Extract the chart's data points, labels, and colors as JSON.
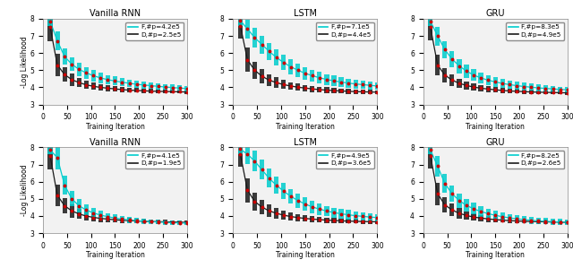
{
  "titles_row1": [
    "Vanilla RNN",
    "LSTM",
    "GRU"
  ],
  "titles_row2": [
    "Vanilla RNN",
    "LSTM",
    "GRU"
  ],
  "legends": [
    [
      "F,#p=4.2e5",
      "D,#p=2.5e5"
    ],
    [
      "F,#p=7.1e5",
      "D,#p=4.4e5"
    ],
    [
      "F,#p=8.3e5",
      "D,#p=4.9e5"
    ],
    [
      "F,#p=4.1e5",
      "D,#p=1.9e5"
    ],
    [
      "F,#p=4.9e5",
      "D,#p=3.6e5"
    ],
    [
      "F,#p=8.2e5",
      "D,#p=2.6e5"
    ]
  ],
  "xlabel": "Training Iteration",
  "ylabel": "-Log Likelihood",
  "xlim": [
    0,
    300
  ],
  "ylim": [
    3,
    8
  ],
  "xticks": [
    0,
    50,
    100,
    150,
    200,
    250,
    300
  ],
  "yticks": [
    3,
    4,
    5,
    6,
    7,
    8
  ],
  "cyan_color": "#00CDCD",
  "black_color": "#1a1a1a",
  "red_dot_color": "#CC0000",
  "background_color": "#f2f2f2",
  "x_points": [
    15,
    30,
    45,
    60,
    75,
    90,
    105,
    120,
    135,
    150,
    165,
    180,
    195,
    210,
    225,
    240,
    255,
    270,
    285,
    300
  ],
  "curves": {
    "r0c0_F_mean": [
      7.85,
      6.7,
      5.8,
      5.35,
      5.05,
      4.85,
      4.68,
      4.55,
      4.45,
      4.37,
      4.3,
      4.24,
      4.18,
      4.14,
      4.1,
      4.06,
      4.02,
      3.99,
      3.96,
      3.93
    ],
    "r0c0_F_err": [
      0.25,
      0.55,
      0.45,
      0.4,
      0.38,
      0.35,
      0.32,
      0.3,
      0.28,
      0.26,
      0.24,
      0.22,
      0.21,
      0.2,
      0.19,
      0.18,
      0.17,
      0.17,
      0.16,
      0.15
    ],
    "r0c0_D_mean": [
      7.5,
      5.3,
      4.75,
      4.45,
      4.28,
      4.15,
      4.06,
      4.0,
      3.95,
      3.91,
      3.87,
      3.84,
      3.82,
      3.8,
      3.78,
      3.77,
      3.76,
      3.75,
      3.74,
      3.73
    ],
    "r0c0_D_err": [
      0.8,
      0.65,
      0.42,
      0.35,
      0.28,
      0.24,
      0.21,
      0.19,
      0.17,
      0.16,
      0.15,
      0.14,
      0.13,
      0.13,
      0.12,
      0.12,
      0.11,
      0.11,
      0.1,
      0.1
    ],
    "r0c1_F_mean": [
      7.9,
      7.4,
      6.9,
      6.5,
      6.1,
      5.75,
      5.45,
      5.2,
      5.0,
      4.82,
      4.68,
      4.56,
      4.46,
      4.38,
      4.31,
      4.25,
      4.2,
      4.16,
      4.12,
      4.08
    ],
    "r0c1_F_err": [
      0.3,
      0.55,
      0.55,
      0.52,
      0.5,
      0.47,
      0.44,
      0.42,
      0.4,
      0.37,
      0.35,
      0.33,
      0.31,
      0.3,
      0.28,
      0.27,
      0.26,
      0.25,
      0.24,
      0.23
    ],
    "r0c1_D_mean": [
      7.6,
      5.6,
      5.0,
      4.65,
      4.42,
      4.28,
      4.16,
      4.08,
      4.01,
      3.96,
      3.91,
      3.87,
      3.84,
      3.81,
      3.79,
      3.77,
      3.75,
      3.74,
      3.73,
      3.72
    ],
    "r0c1_D_err": [
      0.75,
      0.7,
      0.5,
      0.42,
      0.36,
      0.3,
      0.26,
      0.23,
      0.21,
      0.19,
      0.18,
      0.17,
      0.16,
      0.15,
      0.14,
      0.14,
      0.13,
      0.13,
      0.12,
      0.12
    ],
    "r0c2_F_mean": [
      7.85,
      7.0,
      6.2,
      5.65,
      5.25,
      4.95,
      4.72,
      4.55,
      4.42,
      4.32,
      4.23,
      4.16,
      4.1,
      4.05,
      4.01,
      3.97,
      3.94,
      3.91,
      3.88,
      3.86
    ],
    "r0c2_F_err": [
      0.25,
      0.55,
      0.5,
      0.46,
      0.42,
      0.38,
      0.35,
      0.32,
      0.3,
      0.28,
      0.26,
      0.24,
      0.23,
      0.22,
      0.21,
      0.2,
      0.19,
      0.18,
      0.17,
      0.17
    ],
    "r0c2_D_mean": [
      7.5,
      5.3,
      4.72,
      4.42,
      4.24,
      4.11,
      4.02,
      3.95,
      3.9,
      3.86,
      3.82,
      3.79,
      3.77,
      3.75,
      3.73,
      3.72,
      3.71,
      3.7,
      3.69,
      3.68
    ],
    "r0c2_D_err": [
      0.75,
      0.62,
      0.42,
      0.35,
      0.28,
      0.24,
      0.21,
      0.19,
      0.17,
      0.16,
      0.15,
      0.14,
      0.13,
      0.13,
      0.12,
      0.12,
      0.11,
      0.11,
      0.1,
      0.1
    ],
    "r1c0_F_mean": [
      7.85,
      7.4,
      5.8,
      5.0,
      4.6,
      4.35,
      4.18,
      4.05,
      3.96,
      3.88,
      3.82,
      3.77,
      3.73,
      3.7,
      3.67,
      3.65,
      3.63,
      3.61,
      3.6,
      3.58
    ],
    "r1c0_F_err": [
      0.25,
      0.7,
      0.55,
      0.45,
      0.38,
      0.32,
      0.27,
      0.24,
      0.22,
      0.2,
      0.18,
      0.17,
      0.16,
      0.15,
      0.14,
      0.13,
      0.13,
      0.12,
      0.12,
      0.11
    ],
    "r1c0_D_mean": [
      7.5,
      5.2,
      4.6,
      4.3,
      4.12,
      4.0,
      3.92,
      3.86,
      3.82,
      3.78,
      3.75,
      3.73,
      3.71,
      3.69,
      3.68,
      3.67,
      3.66,
      3.65,
      3.64,
      3.63
    ],
    "r1c0_D_err": [
      0.8,
      0.65,
      0.45,
      0.38,
      0.3,
      0.26,
      0.22,
      0.2,
      0.18,
      0.16,
      0.15,
      0.14,
      0.13,
      0.13,
      0.12,
      0.12,
      0.11,
      0.11,
      0.1,
      0.1
    ],
    "r1c1_F_mean": [
      7.9,
      7.6,
      7.2,
      6.7,
      6.2,
      5.8,
      5.45,
      5.15,
      4.9,
      4.7,
      4.53,
      4.4,
      4.29,
      4.2,
      4.13,
      4.07,
      4.02,
      3.98,
      3.94,
      3.91
    ],
    "r1c1_F_err": [
      0.3,
      0.55,
      0.6,
      0.58,
      0.55,
      0.52,
      0.48,
      0.44,
      0.41,
      0.38,
      0.35,
      0.33,
      0.31,
      0.29,
      0.28,
      0.27,
      0.25,
      0.24,
      0.23,
      0.22
    ],
    "r1c1_D_mean": [
      7.6,
      5.5,
      4.85,
      4.52,
      4.3,
      4.16,
      4.05,
      3.97,
      3.91,
      3.86,
      3.82,
      3.79,
      3.76,
      3.74,
      3.72,
      3.7,
      3.69,
      3.68,
      3.67,
      3.66
    ],
    "r1c1_D_err": [
      0.75,
      0.7,
      0.52,
      0.43,
      0.36,
      0.3,
      0.26,
      0.23,
      0.21,
      0.19,
      0.18,
      0.17,
      0.16,
      0.15,
      0.14,
      0.14,
      0.13,
      0.13,
      0.12,
      0.12
    ],
    "r1c2_F_mean": [
      7.85,
      6.9,
      5.9,
      5.3,
      4.9,
      4.62,
      4.42,
      4.26,
      4.14,
      4.04,
      3.96,
      3.89,
      3.84,
      3.79,
      3.75,
      3.72,
      3.69,
      3.67,
      3.65,
      3.63
    ],
    "r1c2_F_err": [
      0.25,
      0.6,
      0.55,
      0.48,
      0.43,
      0.38,
      0.34,
      0.31,
      0.29,
      0.27,
      0.25,
      0.23,
      0.22,
      0.21,
      0.2,
      0.19,
      0.18,
      0.17,
      0.17,
      0.16
    ],
    "r1c2_D_mean": [
      7.5,
      5.3,
      4.65,
      4.35,
      4.16,
      4.03,
      3.94,
      3.88,
      3.83,
      3.79,
      3.76,
      3.73,
      3.71,
      3.69,
      3.68,
      3.67,
      3.66,
      3.65,
      3.64,
      3.63
    ],
    "r1c2_D_err": [
      0.75,
      0.65,
      0.45,
      0.37,
      0.3,
      0.25,
      0.22,
      0.19,
      0.17,
      0.16,
      0.15,
      0.14,
      0.13,
      0.13,
      0.12,
      0.12,
      0.11,
      0.11,
      0.1,
      0.1
    ]
  }
}
